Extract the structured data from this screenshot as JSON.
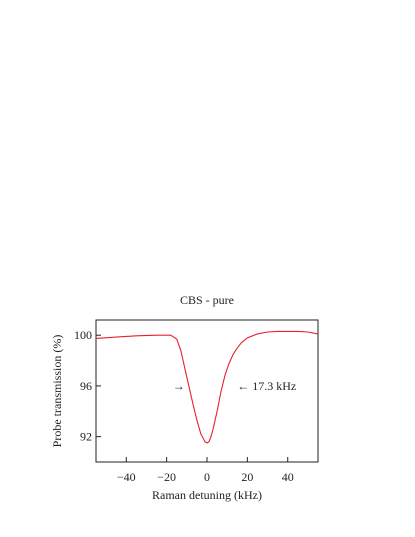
{
  "chart_data": {
    "type": "line",
    "title": "CBS - pure",
    "xlabel": "Raman detuning (kHz)",
    "ylabel": "Probe transmission (%)",
    "xlim": [
      -55,
      55
    ],
    "ylim": [
      90,
      101.2
    ],
    "xticks": [
      -40,
      -20,
      0,
      20,
      40
    ],
    "xtick_labels": [
      "−40",
      "−20",
      "0",
      "20",
      "40"
    ],
    "yticks": [
      92,
      96,
      100
    ],
    "ytick_labels": [
      "92",
      "96",
      "100"
    ],
    "grid": false,
    "series": [
      {
        "color": "#e8202a",
        "x": [
          -55,
          -45,
          -35,
          -25,
          -18,
          -15,
          -13,
          -11,
          -9,
          -7,
          -5,
          -3,
          -1,
          0,
          1,
          2,
          3,
          5,
          7,
          9,
          11,
          13,
          15,
          17,
          20,
          25,
          30,
          35,
          40,
          45,
          50,
          55
        ],
        "y": [
          99.75,
          99.85,
          99.95,
          100.0,
          100.0,
          99.7,
          98.8,
          97.4,
          96.0,
          94.6,
          93.3,
          92.2,
          91.6,
          91.5,
          91.6,
          92.0,
          92.6,
          94.0,
          95.6,
          96.9,
          97.8,
          98.5,
          99.0,
          99.4,
          99.8,
          100.1,
          100.25,
          100.3,
          100.3,
          100.3,
          100.25,
          100.1
        ]
      }
    ],
    "annotations": [
      {
        "text": "→",
        "x": -14,
        "y": 96
      },
      {
        "text": "← 17.3 kHz",
        "x": 15,
        "y": 96
      }
    ]
  }
}
